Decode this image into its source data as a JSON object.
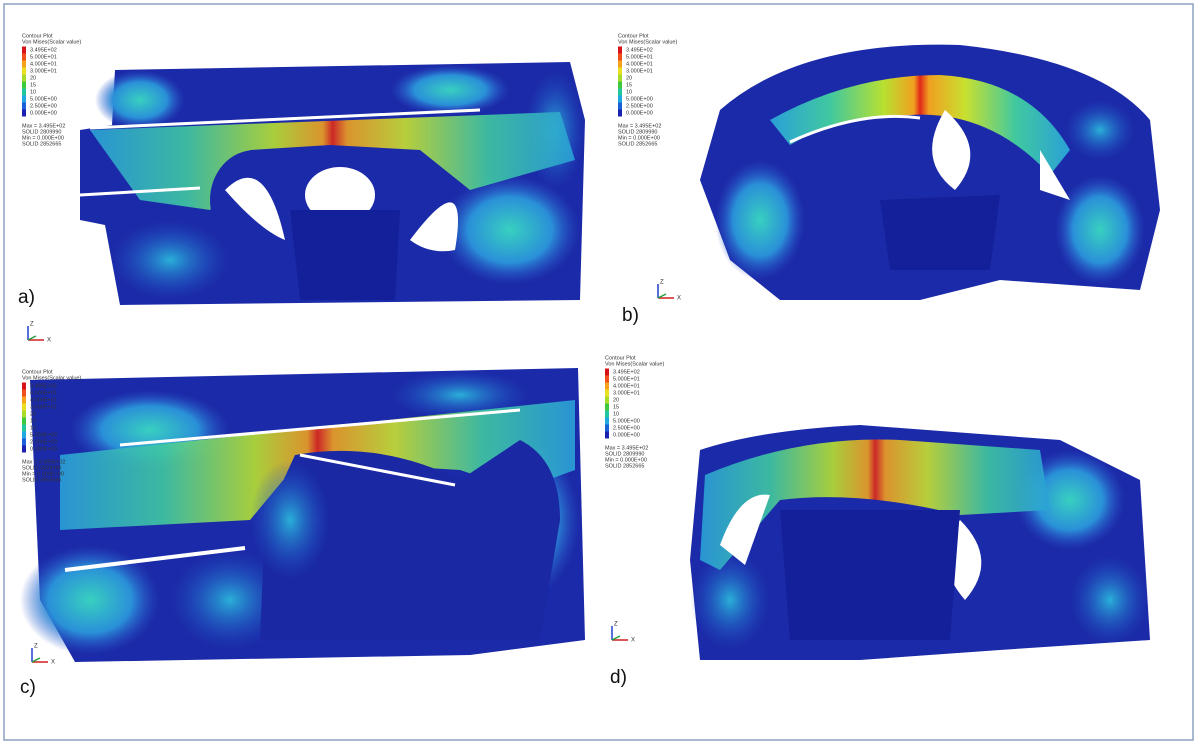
{
  "legend": {
    "title": "Contour Plot",
    "subtitle": "Von Mises(Scalar value)",
    "levels": [
      "3.495E+02",
      "5.000E+01",
      "4.000E+01",
      "3.000E+01",
      "20",
      "15",
      "10",
      "5.000E+00",
      "2.500E+00",
      "0.000E+00"
    ],
    "colors": [
      "#d8141a",
      "#f0501c",
      "#f5a21c",
      "#e8e020",
      "#a8dc28",
      "#40c840",
      "#20c8a0",
      "#20a8e0",
      "#1a60d8",
      "#1a20b0"
    ],
    "footer": [
      "Max = 3.495E+02",
      "SOLID 2809990",
      "Min = 0.000E+00",
      "SOLID 2852665"
    ]
  },
  "triad": {
    "z": "Z",
    "x": "X"
  },
  "panels": [
    {
      "label": "a)"
    },
    {
      "label": "b)"
    },
    {
      "label": "c)"
    },
    {
      "label": "d)"
    }
  ]
}
